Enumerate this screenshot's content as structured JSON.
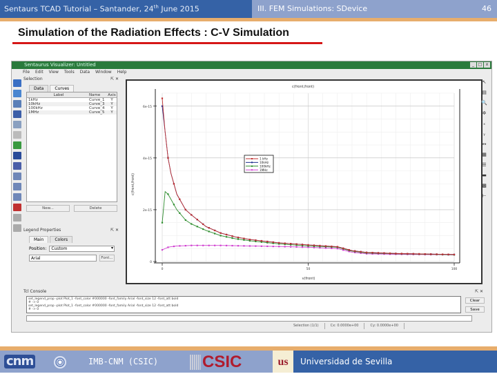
{
  "slide": {
    "header_left": "Sentaurs TCAD Tutorial – Santander, 24",
    "header_left_sup": "th",
    "header_left_tail": " June 2015",
    "header_right": "III. FEM Simulations: SDevice",
    "page_number": "46",
    "title": "Simulation of the Radiation Effects : C-V Simulation",
    "accent_colors": {
      "header_dark": "#3562a6",
      "header_light": "#8ea2cc",
      "orange_bar": "#e7ad6c",
      "underline": "#d61616"
    }
  },
  "app": {
    "window_title": "Sentaurus Visualizer: Untitled",
    "window_controls": [
      "_",
      "□",
      "x"
    ],
    "menu": [
      "File",
      "Edit",
      "View",
      "Tools",
      "Data",
      "Window",
      "Help"
    ],
    "selection_panel": {
      "title": "Selection",
      "tabs": [
        "Data",
        "Curves"
      ],
      "active_tab": "Curves",
      "columns": [
        "Label",
        "Name",
        "Axis"
      ],
      "rows": [
        {
          "label": "1kHz",
          "name": "Curve_1",
          "axis": "Y"
        },
        {
          "label": "10kHz",
          "name": "Curve_3",
          "axis": "Y"
        },
        {
          "label": "100kHz",
          "name": "Curve_4",
          "axis": "Y"
        },
        {
          "label": "1MHz",
          "name": "Curve_5",
          "axis": "Y"
        }
      ],
      "new_button": "New...",
      "delete_button": "Delete"
    },
    "legend_panel": {
      "title": "Legend Properties",
      "tabs": [
        "Main",
        "Colors"
      ],
      "position_label": "Position:",
      "position_value": "Custom",
      "font_value": "Arial",
      "font_button": "Font..."
    },
    "command_panel": {
      "title": "Tcl Console",
      "lines": [
        "set_legend_prop -plot Plot_1 -font_color #000000 -font_family Arial -font_size 12 -font_att bold",
        "# -> 0",
        "set_legend_prop -plot Plot_1 -font_color #000000 -font_family Arial -font_size 12 -font_att bold",
        "# -> 0"
      ],
      "clear_button": "Clear",
      "save_button": "Save"
    },
    "status_bar": [
      "Selection (1/1)",
      "Cx: 0.0000e+00",
      "Cy: 0.0000e+00"
    ]
  },
  "chart_data": {
    "type": "line",
    "title": "c(front,front)",
    "xlabel": "v(front)",
    "ylabel": "c(front,front)",
    "xlim": [
      0,
      100
    ],
    "ylim": [
      0,
      6.5e-15
    ],
    "x_ticks": [
      "0",
      "50",
      "100"
    ],
    "y_ticks": [
      "0",
      "2e-15",
      "4e-15",
      "6e-15"
    ],
    "grid": true,
    "legend_position": "custom (upper middle)",
    "x": [
      0,
      1,
      2,
      3,
      5,
      8,
      10,
      15,
      20,
      25,
      30,
      40,
      50,
      60,
      65,
      70,
      80,
      90,
      100
    ],
    "series": [
      {
        "name": "1 kHz",
        "color": "#c03030",
        "values": [
          6.3e-15,
          5e-15,
          4e-15,
          3.4e-15,
          2.6e-15,
          2e-15,
          1.8e-15,
          1.35e-15,
          1.1e-15,
          9.5e-16,
          8.5e-16,
          7.2e-16,
          6.4e-16,
          5.7e-16,
          4.2e-16,
          3.5e-16,
          3.1e-16,
          2.9e-16,
          2.7e-16
        ]
      },
      {
        "name": "10kHz",
        "color": "#1c2c8c",
        "values": [
          6e-15,
          5e-15,
          4e-15,
          3.4e-15,
          2.6e-15,
          2e-15,
          1.8e-15,
          1.35e-15,
          1.1e-15,
          9.5e-16,
          8.5e-16,
          7.2e-16,
          6.4e-16,
          5.7e-16,
          4.2e-16,
          3.5e-16,
          3.1e-16,
          2.9e-16,
          2.7e-16
        ]
      },
      {
        "name": "100kHz",
        "color": "#2c8c2c",
        "values": [
          1.5e-15,
          2.7e-15,
          2.6e-15,
          2.4e-15,
          2e-15,
          1.6e-15,
          1.45e-15,
          1.2e-15,
          1e-15,
          8.8e-16,
          8e-16,
          6.8e-16,
          6e-16,
          5.5e-16,
          4e-16,
          3.3e-16,
          3e-16,
          2.8e-16,
          2.6e-16
        ]
      },
      {
        "name": "1MHz",
        "color": "#d040d0",
        "values": [
          4.5e-16,
          5e-16,
          5.5e-16,
          5.7e-16,
          6e-16,
          6.1e-16,
          6.2e-16,
          6.2e-16,
          6.2e-16,
          6.1e-16,
          6e-16,
          5.8e-16,
          5.5e-16,
          5e-16,
          3.6e-16,
          3e-16,
          2.8e-16,
          2.7e-16,
          2.6e-16
        ]
      }
    ]
  },
  "footer": {
    "cnm_logo": "cnm",
    "institution": "IMB-CNM (CSIC)",
    "csic_logo": "CSIC",
    "us_logo": "us",
    "university": "Universidad de Sevilla"
  }
}
